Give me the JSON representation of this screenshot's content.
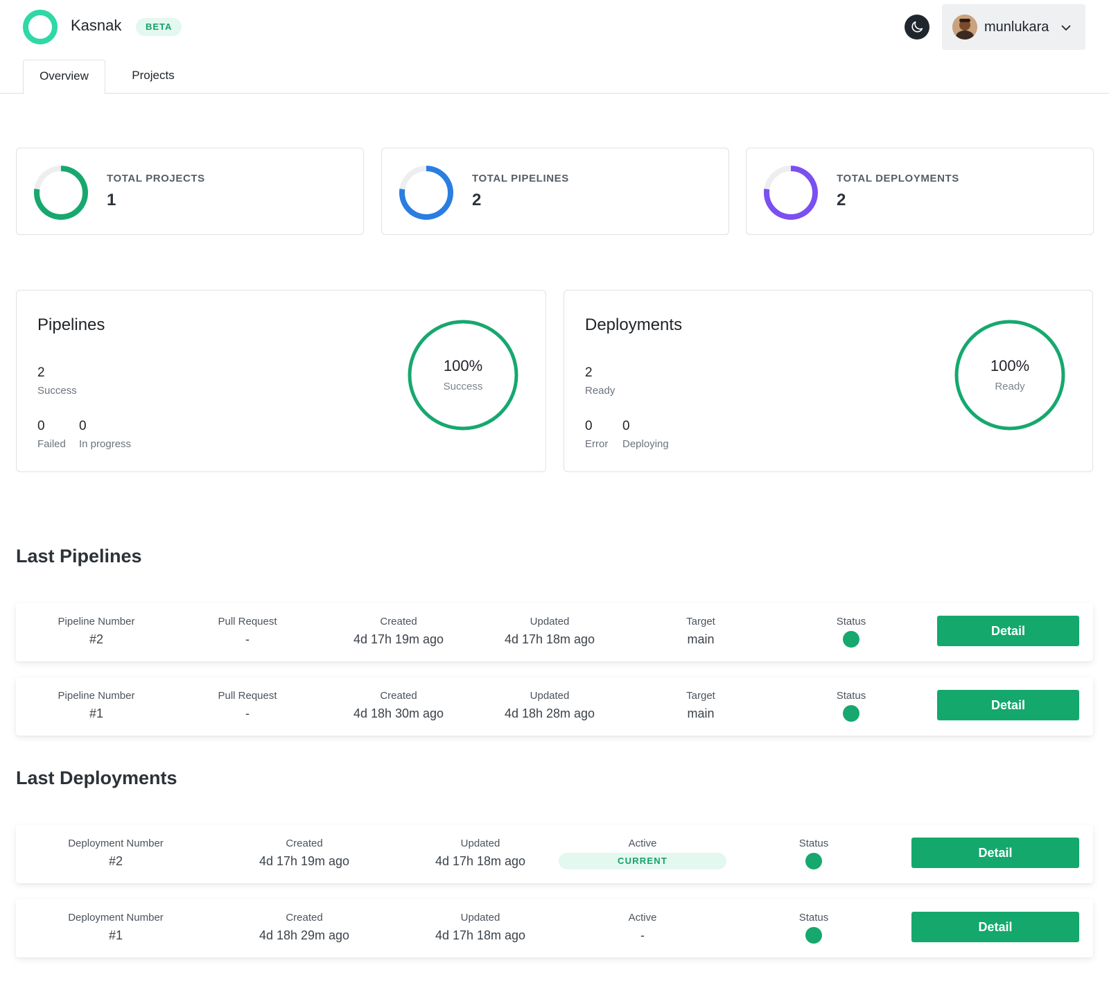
{
  "header": {
    "brand": "Kasnak",
    "beta_badge": "BETA",
    "username": "munlukara",
    "theme_icon": "moon-icon"
  },
  "tabs": [
    {
      "label": "Overview",
      "active": true
    },
    {
      "label": "Projects",
      "active": false
    }
  ],
  "stats": [
    {
      "label": "TOTAL PROJECTS",
      "value": "1",
      "color": "#16a86e"
    },
    {
      "label": "TOTAL PIPELINES",
      "value": "2",
      "color": "#2a7de1"
    },
    {
      "label": "TOTAL DEPLOYMENTS",
      "value": "2",
      "color": "#7b4ff0"
    }
  ],
  "pipelines_summary": {
    "title": "Pipelines",
    "success_count": "2",
    "success_label": "Success",
    "failed_count": "0",
    "failed_label": "Failed",
    "in_progress_count": "0",
    "in_progress_label": "In progress",
    "ring_percent": "100%",
    "ring_label": "Success",
    "ring_fraction": 1.0,
    "ring_color": "#16a86e"
  },
  "deployments_summary": {
    "title": "Deployments",
    "ready_count": "2",
    "ready_label": "Ready",
    "error_count": "0",
    "error_label": "Error",
    "deploying_count": "0",
    "deploying_label": "Deploying",
    "ring_percent": "100%",
    "ring_label": "Ready",
    "ring_fraction": 1.0,
    "ring_color": "#16a86e"
  },
  "last_pipelines": {
    "title": "Last Pipelines",
    "columns": {
      "number": "Pipeline Number",
      "pull_request": "Pull Request",
      "created": "Created",
      "updated": "Updated",
      "target": "Target",
      "status": "Status"
    },
    "detail_label": "Detail",
    "rows": [
      {
        "number": "#2",
        "pull_request": "-",
        "created": "4d 17h 19m ago",
        "updated": "4d 17h 18m ago",
        "target": "main"
      },
      {
        "number": "#1",
        "pull_request": "-",
        "created": "4d 18h 30m ago",
        "updated": "4d 18h 28m ago",
        "target": "main"
      }
    ]
  },
  "last_deployments": {
    "title": "Last Deployments",
    "columns": {
      "number": "Deployment Number",
      "created": "Created",
      "updated": "Updated",
      "active": "Active",
      "status": "Status"
    },
    "detail_label": "Detail",
    "rows": [
      {
        "number": "#2",
        "created": "4d 17h 19m ago",
        "updated": "4d 17h 18m ago",
        "active": "CURRENT"
      },
      {
        "number": "#1",
        "created": "4d 18h 29m ago",
        "updated": "4d 17h 18m ago",
        "active": "-"
      }
    ]
  }
}
